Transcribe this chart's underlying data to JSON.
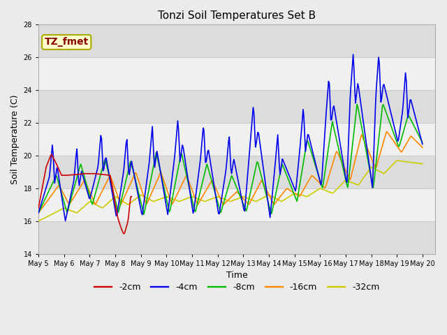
{
  "title": "Tonzi Soil Temperatures Set B",
  "xlabel": "Time",
  "ylabel": "Soil Temperature (C)",
  "ylim": [
    14,
    28
  ],
  "x_tick_labels": [
    "May 5",
    "May 6",
    "May 7",
    "May 8",
    "May 9",
    "May 10",
    "May 11",
    "May 12",
    "May 13",
    "May 14",
    "May 15",
    "May 16",
    "May 17",
    "May 18",
    "May 19",
    "May 20"
  ],
  "annotation_text": "TZ_fmet",
  "annotation_color": "#8B0000",
  "annotation_bg": "#FFFFCC",
  "annotation_border": "#AAAA00",
  "series_colors": {
    "-2cm": "#CC0000",
    "-4cm": "#0000EE",
    "-8cm": "#00BB00",
    "-16cm": "#FF8800",
    "-32cm": "#CCCC00"
  },
  "lw": 1.2,
  "bg_color": "#EBEBEB",
  "plot_bg_light": "#F0F0F0",
  "plot_bg_dark": "#DCDCDC",
  "grid_color": "#CCCCCC",
  "title_fontsize": 11,
  "axis_fontsize": 9,
  "tick_fontsize": 7,
  "legend_fontsize": 9
}
